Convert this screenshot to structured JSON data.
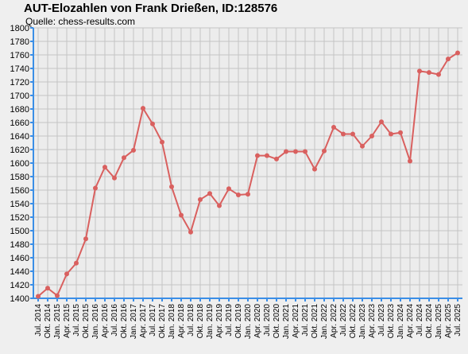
{
  "chart_data": {
    "type": "line",
    "title": "AUT-Elozahlen von Frank Drießen, ID:128576",
    "subtitle": "Quelle: chess-results.com",
    "xlabel": "",
    "ylabel": "",
    "ylim": [
      1400,
      1800
    ],
    "ystep": 20,
    "grid": true,
    "categories": [
      "Jul. 2014",
      "Okt. 2014",
      "Jan. 2015",
      "Apr. 2015",
      "Jul. 2015",
      "Okt. 2015",
      "Jan. 2016",
      "Apr. 2016",
      "Jul. 2016",
      "Okt. 2016",
      "Jan. 2017",
      "Apr. 2017",
      "Jul. 2017",
      "Okt. 2017",
      "Jan. 2018",
      "Apr. 2018",
      "Jul. 2018",
      "Okt. 2018",
      "Jan. 2019",
      "Apr. 2019",
      "Jul. 2019",
      "Okt. 2019",
      "Jan. 2020",
      "Apr. 2020",
      "Jul. 2020",
      "Okt. 2020",
      "Jan. 2021",
      "Apr. 2021",
      "Jul. 2021",
      "Okt. 2021",
      "Jan. 2022",
      "Apr. 2022",
      "Jul. 2022",
      "Okt. 2022",
      "Jan. 2023",
      "Apr. 2023",
      "Jul. 2023",
      "Okt. 2023",
      "Jan. 2024",
      "Apr. 2024",
      "Jul. 2024",
      "Okt. 2024",
      "Jan. 2025",
      "Apr. 2025",
      "Jul. 2025"
    ],
    "series": [
      {
        "color": "#d9605f",
        "values": [
          1403,
          1415,
          1404,
          1436,
          1452,
          1488,
          1563,
          1594,
          1578,
          1608,
          1619,
          1681,
          1658,
          1631,
          1565,
          1523,
          1498,
          1546,
          1555,
          1537,
          1562,
          1553,
          1554,
          1611,
          1611,
          1606,
          1617,
          1617,
          1617,
          1591,
          1618,
          1653,
          1643,
          1643,
          1625,
          1640,
          1661,
          1643,
          1645,
          1603,
          1736,
          1734,
          1731,
          1754,
          1763
        ]
      }
    ]
  }
}
